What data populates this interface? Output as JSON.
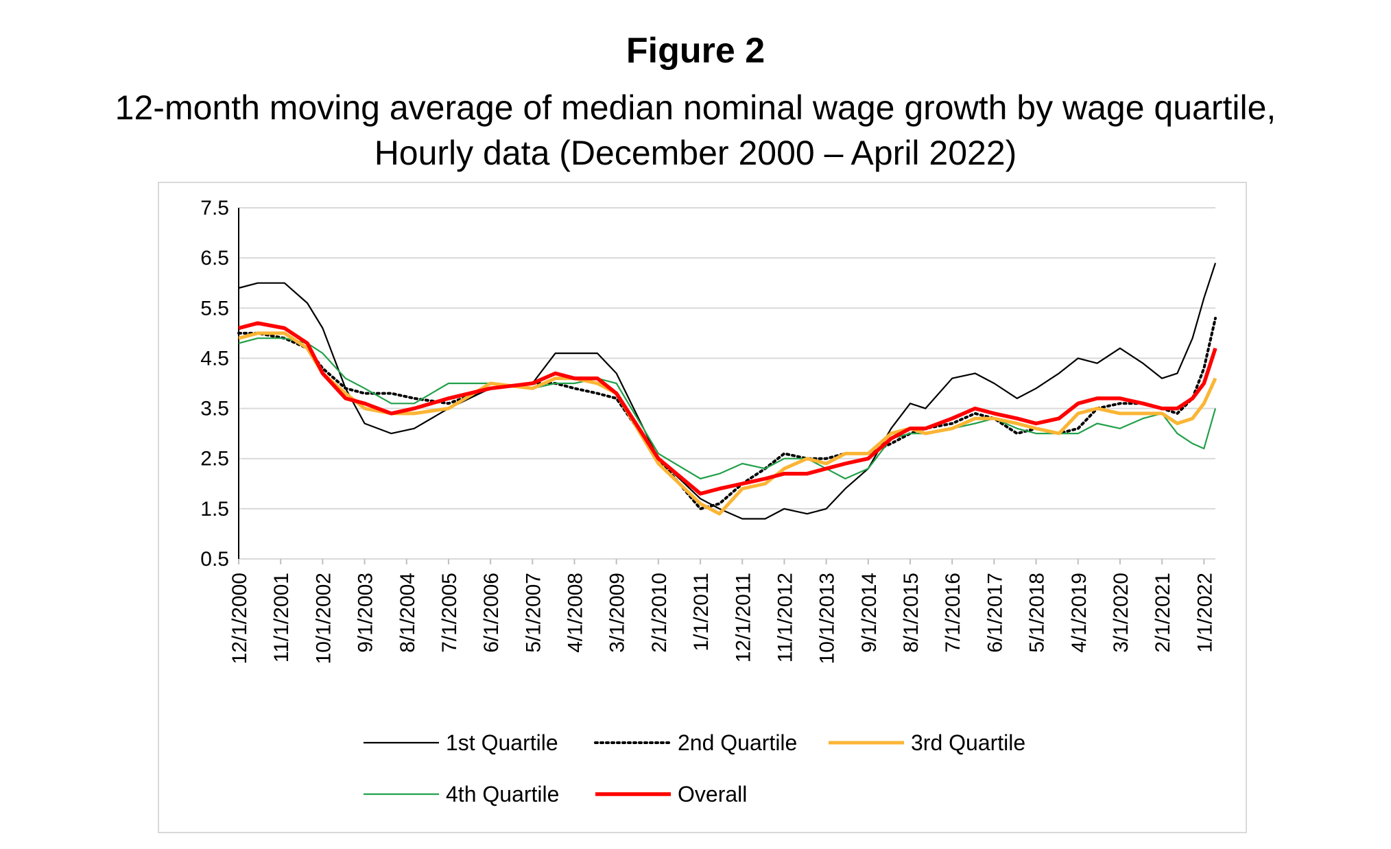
{
  "figure": {
    "title": "Figure 2",
    "subtitle_line1": "12-month moving average of median nominal wage growth by wage quartile,",
    "subtitle_line2": "Hourly data (December 2000 – April 2022)"
  },
  "chart_data": {
    "type": "line",
    "x_start": "12/1/2000",
    "x_end": "4/1/2022",
    "x_tick_labels": [
      "12/1/2000",
      "11/1/2001",
      "10/1/2002",
      "9/1/2003",
      "8/1/2004",
      "7/1/2005",
      "6/1/2006",
      "5/1/2007",
      "4/1/2008",
      "3/1/2009",
      "2/1/2010",
      "1/1/2011",
      "12/1/2011",
      "11/1/2012",
      "10/1/2013",
      "9/1/2014",
      "8/1/2015",
      "7/1/2016",
      "6/1/2017",
      "5/1/2018",
      "4/1/2019",
      "3/1/2020",
      "2/1/2021",
      "1/1/2022"
    ],
    "y_tick_labels": [
      "0.5",
      "1.5",
      "2.5",
      "3.5",
      "4.5",
      "5.5",
      "6.5",
      "7.5"
    ],
    "ylim": [
      0.5,
      7.5
    ],
    "grid": "horizontal",
    "legend_position": "bottom",
    "series": [
      {
        "name": "1st Quartile",
        "color": "#000000",
        "style": "solid-thin",
        "x": [
          "12/1/2000",
          "5/1/2001",
          "12/1/2001",
          "6/1/2002",
          "10/1/2002",
          "4/1/2003",
          "9/1/2003",
          "4/1/2004",
          "10/1/2004",
          "7/1/2005",
          "6/1/2006",
          "5/1/2007",
          "11/1/2007",
          "4/1/2008",
          "10/1/2008",
          "3/1/2009",
          "2/1/2010",
          "1/1/2011",
          "6/1/2011",
          "12/1/2011",
          "6/1/2012",
          "11/1/2012",
          "5/1/2013",
          "10/1/2013",
          "3/1/2014",
          "9/1/2014",
          "3/1/2015",
          "8/1/2015",
          "12/1/2015",
          "7/1/2016",
          "1/1/2017",
          "6/1/2017",
          "12/1/2017",
          "5/1/2018",
          "11/1/2018",
          "4/1/2019",
          "9/1/2019",
          "3/1/2020",
          "9/1/2020",
          "2/1/2021",
          "6/1/2021",
          "10/1/2021",
          "1/1/2022",
          "4/1/2022"
        ],
        "y": [
          5.9,
          6.0,
          6.0,
          5.6,
          5.1,
          3.9,
          3.2,
          3.0,
          3.1,
          3.5,
          3.9,
          4.0,
          4.6,
          4.6,
          4.6,
          4.2,
          2.5,
          1.7,
          1.5,
          1.3,
          1.3,
          1.5,
          1.4,
          1.5,
          1.9,
          2.3,
          3.1,
          3.6,
          3.5,
          4.1,
          4.2,
          4.0,
          3.7,
          3.9,
          4.2,
          4.5,
          4.4,
          4.7,
          4.4,
          4.1,
          4.2,
          4.9,
          5.7,
          6.4
        ]
      },
      {
        "name": "2nd Quartile",
        "color": "#000000",
        "style": "dotted",
        "x": [
          "12/1/2000",
          "5/1/2001",
          "12/1/2001",
          "6/1/2002",
          "10/1/2002",
          "4/1/2003",
          "9/1/2003",
          "4/1/2004",
          "10/1/2004",
          "7/1/2005",
          "6/1/2006",
          "5/1/2007",
          "11/1/2007",
          "4/1/2008",
          "10/1/2008",
          "3/1/2009",
          "2/1/2010",
          "1/1/2011",
          "6/1/2011",
          "12/1/2011",
          "6/1/2012",
          "11/1/2012",
          "5/1/2013",
          "10/1/2013",
          "3/1/2014",
          "9/1/2014",
          "3/1/2015",
          "8/1/2015",
          "12/1/2015",
          "7/1/2016",
          "1/1/2017",
          "6/1/2017",
          "12/1/2017",
          "5/1/2018",
          "11/1/2018",
          "4/1/2019",
          "9/1/2019",
          "3/1/2020",
          "9/1/2020",
          "2/1/2021",
          "6/1/2021",
          "10/1/2021",
          "1/1/2022",
          "4/1/2022"
        ],
        "y": [
          5.0,
          5.0,
          4.9,
          4.7,
          4.3,
          3.9,
          3.8,
          3.8,
          3.7,
          3.6,
          3.9,
          4.0,
          4.0,
          3.9,
          3.8,
          3.7,
          2.5,
          1.5,
          1.6,
          2.0,
          2.3,
          2.6,
          2.5,
          2.5,
          2.6,
          2.6,
          2.8,
          3.0,
          3.1,
          3.2,
          3.4,
          3.3,
          3.0,
          3.1,
          3.0,
          3.1,
          3.5,
          3.6,
          3.6,
          3.5,
          3.4,
          3.7,
          4.3,
          5.3
        ]
      },
      {
        "name": "3rd Quartile",
        "color": "#FBB535",
        "style": "solid-thick",
        "x": [
          "12/1/2000",
          "5/1/2001",
          "12/1/2001",
          "6/1/2002",
          "10/1/2002",
          "4/1/2003",
          "9/1/2003",
          "4/1/2004",
          "10/1/2004",
          "7/1/2005",
          "6/1/2006",
          "5/1/2007",
          "11/1/2007",
          "4/1/2008",
          "10/1/2008",
          "3/1/2009",
          "2/1/2010",
          "1/1/2011",
          "6/1/2011",
          "12/1/2011",
          "6/1/2012",
          "11/1/2012",
          "5/1/2013",
          "10/1/2013",
          "3/1/2014",
          "9/1/2014",
          "3/1/2015",
          "8/1/2015",
          "12/1/2015",
          "7/1/2016",
          "1/1/2017",
          "6/1/2017",
          "12/1/2017",
          "5/1/2018",
          "11/1/2018",
          "4/1/2019",
          "9/1/2019",
          "3/1/2020",
          "9/1/2020",
          "2/1/2021",
          "6/1/2021",
          "10/1/2021",
          "1/1/2022",
          "4/1/2022"
        ],
        "y": [
          4.9,
          5.0,
          5.0,
          4.7,
          4.2,
          3.8,
          3.5,
          3.4,
          3.4,
          3.5,
          4.0,
          3.9,
          4.1,
          4.1,
          4.0,
          3.8,
          2.4,
          1.6,
          1.4,
          1.9,
          2.0,
          2.3,
          2.5,
          2.4,
          2.6,
          2.6,
          3.0,
          3.1,
          3.0,
          3.1,
          3.3,
          3.3,
          3.2,
          3.1,
          3.0,
          3.4,
          3.5,
          3.4,
          3.4,
          3.4,
          3.2,
          3.3,
          3.6,
          4.1
        ]
      },
      {
        "name": "4th Quartile",
        "color": "#21A04A",
        "style": "solid-thin",
        "x": [
          "12/1/2000",
          "5/1/2001",
          "12/1/2001",
          "6/1/2002",
          "10/1/2002",
          "4/1/2003",
          "9/1/2003",
          "4/1/2004",
          "10/1/2004",
          "7/1/2005",
          "6/1/2006",
          "5/1/2007",
          "11/1/2007",
          "4/1/2008",
          "10/1/2008",
          "3/1/2009",
          "2/1/2010",
          "1/1/2011",
          "6/1/2011",
          "12/1/2011",
          "6/1/2012",
          "11/1/2012",
          "5/1/2013",
          "10/1/2013",
          "3/1/2014",
          "9/1/2014",
          "3/1/2015",
          "8/1/2015",
          "12/1/2015",
          "7/1/2016",
          "1/1/2017",
          "6/1/2017",
          "12/1/2017",
          "5/1/2018",
          "11/1/2018",
          "4/1/2019",
          "9/1/2019",
          "3/1/2020",
          "9/1/2020",
          "2/1/2021",
          "6/1/2021",
          "10/1/2021",
          "1/1/2022",
          "4/1/2022"
        ],
        "y": [
          4.8,
          4.9,
          4.9,
          4.8,
          4.6,
          4.1,
          3.9,
          3.6,
          3.6,
          4.0,
          4.0,
          3.9,
          4.0,
          4.0,
          4.1,
          4.0,
          2.6,
          2.1,
          2.2,
          2.4,
          2.3,
          2.5,
          2.5,
          2.3,
          2.1,
          2.3,
          2.9,
          3.0,
          3.0,
          3.1,
          3.2,
          3.3,
          3.1,
          3.0,
          3.0,
          3.0,
          3.2,
          3.1,
          3.3,
          3.4,
          3.0,
          2.8,
          2.7,
          3.5
        ]
      },
      {
        "name": "Overall",
        "color": "#FF0000",
        "style": "solid-thicker",
        "x": [
          "12/1/2000",
          "5/1/2001",
          "12/1/2001",
          "6/1/2002",
          "10/1/2002",
          "4/1/2003",
          "9/1/2003",
          "4/1/2004",
          "10/1/2004",
          "7/1/2005",
          "6/1/2006",
          "5/1/2007",
          "11/1/2007",
          "4/1/2008",
          "10/1/2008",
          "3/1/2009",
          "2/1/2010",
          "1/1/2011",
          "6/1/2011",
          "12/1/2011",
          "6/1/2012",
          "11/1/2012",
          "5/1/2013",
          "10/1/2013",
          "3/1/2014",
          "9/1/2014",
          "3/1/2015",
          "8/1/2015",
          "12/1/2015",
          "7/1/2016",
          "1/1/2017",
          "6/1/2017",
          "12/1/2017",
          "5/1/2018",
          "11/1/2018",
          "4/1/2019",
          "9/1/2019",
          "3/1/2020",
          "9/1/2020",
          "2/1/2021",
          "6/1/2021",
          "10/1/2021",
          "1/1/2022",
          "4/1/2022"
        ],
        "y": [
          5.1,
          5.2,
          5.1,
          4.8,
          4.2,
          3.7,
          3.6,
          3.4,
          3.5,
          3.7,
          3.9,
          4.0,
          4.2,
          4.1,
          4.1,
          3.8,
          2.5,
          1.8,
          1.9,
          2.0,
          2.1,
          2.2,
          2.2,
          2.3,
          2.4,
          2.5,
          2.9,
          3.1,
          3.1,
          3.3,
          3.5,
          3.4,
          3.3,
          3.2,
          3.3,
          3.6,
          3.7,
          3.7,
          3.6,
          3.5,
          3.5,
          3.7,
          4.0,
          4.7
        ]
      }
    ]
  }
}
